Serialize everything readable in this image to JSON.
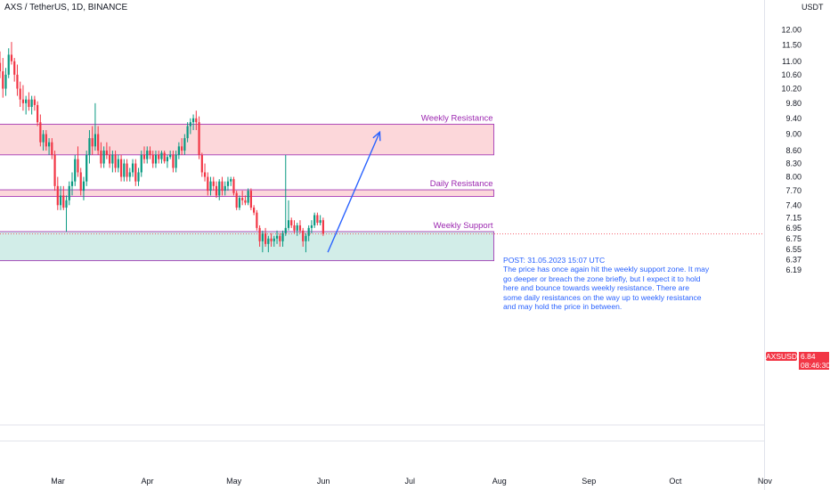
{
  "header": {
    "title": "AXS / TetherUS, 1D, BINANCE",
    "currency": "USDT"
  },
  "price_badge": {
    "symbol": "AXSUSDT",
    "price": "6.84",
    "countdown": "08:46:30"
  },
  "note": {
    "lines": [
      "POST: 31.05.2023 15:07 UTC",
      "The price has once again hit the weekly support zone. It may go deeper or breach the zone briefly, but I expect it to hold here and bounce towards weekly resistance. There are some daily resistances on the way up to weekly resistance and may hold the price in between."
    ]
  },
  "chart_data": {
    "type": "candlestick",
    "title": "AXS / TetherUS, 1D, BINANCE",
    "y_axis": {
      "scale": "log",
      "ticks": [
        "12.00",
        "11.50",
        "11.00",
        "10.60",
        "10.20",
        "9.80",
        "9.40",
        "9.00",
        "8.60",
        "8.30",
        "8.00",
        "7.70",
        "7.40",
        "7.15",
        "6.95",
        "6.75",
        "6.55",
        "6.37",
        "6.19"
      ],
      "range": [
        6.1,
        12.4
      ]
    },
    "x_axis": {
      "ticks": [
        "Mar",
        "Apr",
        "May",
        "Jun",
        "Jul",
        "Aug",
        "Sep",
        "Oct",
        "Nov"
      ],
      "range": [
        "2023-02-08",
        "2023-11-20"
      ]
    },
    "zones": [
      {
        "label": "Weekly Resistance",
        "low": 8.5,
        "high": 9.25,
        "end": "2023-07-31",
        "color": "#f23645"
      },
      {
        "label": "Daily Resistance",
        "low": 7.58,
        "high": 7.72,
        "end": "2023-07-31",
        "color": "#f23645"
      },
      {
        "label": "Weekly Support",
        "low": 6.35,
        "high": 6.88,
        "end": "2023-07-31",
        "color": "#089981"
      }
    ],
    "projection": {
      "from": [
        "2023-06-01",
        6.5
      ],
      "to": [
        "2023-06-19",
        9.05
      ],
      "color": "#2962ff"
    },
    "last_price": 6.84,
    "colors": {
      "up": "#089981",
      "down": "#f23645",
      "background": "#ffffff"
    },
    "candles": [
      {
        "d": "2023-02-08",
        "o": 10.95,
        "h": 11.3,
        "l": 10.5,
        "c": 10.7
      },
      {
        "d": "2023-02-09",
        "o": 10.7,
        "h": 11.1,
        "l": 9.95,
        "c": 10.2
      },
      {
        "d": "2023-02-10",
        "o": 10.2,
        "h": 10.8,
        "l": 10.0,
        "c": 10.6
      },
      {
        "d": "2023-02-11",
        "o": 10.6,
        "h": 11.4,
        "l": 10.5,
        "c": 11.2
      },
      {
        "d": "2023-02-12",
        "o": 11.2,
        "h": 11.6,
        "l": 10.9,
        "c": 11.0
      },
      {
        "d": "2023-02-13",
        "o": 11.0,
        "h": 11.1,
        "l": 10.4,
        "c": 10.6
      },
      {
        "d": "2023-02-14",
        "o": 10.6,
        "h": 10.9,
        "l": 10.0,
        "c": 10.2
      },
      {
        "d": "2023-02-15",
        "o": 10.2,
        "h": 10.4,
        "l": 9.7,
        "c": 9.9
      },
      {
        "d": "2023-02-16",
        "o": 9.9,
        "h": 10.3,
        "l": 9.6,
        "c": 9.8
      },
      {
        "d": "2023-02-17",
        "o": 9.8,
        "h": 10.0,
        "l": 9.5,
        "c": 9.9
      },
      {
        "d": "2023-02-18",
        "o": 9.9,
        "h": 10.1,
        "l": 9.6,
        "c": 9.7
      },
      {
        "d": "2023-02-19",
        "o": 9.7,
        "h": 10.0,
        "l": 9.5,
        "c": 9.9
      },
      {
        "d": "2023-02-20",
        "o": 9.9,
        "h": 10.0,
        "l": 9.6,
        "c": 9.75
      },
      {
        "d": "2023-02-21",
        "o": 9.75,
        "h": 9.85,
        "l": 9.2,
        "c": 9.3
      },
      {
        "d": "2023-02-22",
        "o": 9.3,
        "h": 9.5,
        "l": 8.7,
        "c": 8.8
      },
      {
        "d": "2023-02-23",
        "o": 8.8,
        "h": 9.1,
        "l": 8.6,
        "c": 9.0
      },
      {
        "d": "2023-02-24",
        "o": 9.0,
        "h": 9.1,
        "l": 8.6,
        "c": 8.7
      },
      {
        "d": "2023-02-25",
        "o": 8.7,
        "h": 8.9,
        "l": 8.5,
        "c": 8.8
      },
      {
        "d": "2023-02-26",
        "o": 8.8,
        "h": 8.9,
        "l": 8.4,
        "c": 8.5
      },
      {
        "d": "2023-02-27",
        "o": 8.5,
        "h": 8.6,
        "l": 7.7,
        "c": 7.8
      },
      {
        "d": "2023-02-28",
        "o": 7.8,
        "h": 8.0,
        "l": 7.3,
        "c": 7.4
      },
      {
        "d": "2023-03-01",
        "o": 7.4,
        "h": 7.8,
        "l": 7.3,
        "c": 7.6
      },
      {
        "d": "2023-03-02",
        "o": 7.6,
        "h": 7.8,
        "l": 7.3,
        "c": 7.35
      },
      {
        "d": "2023-03-03",
        "o": 7.35,
        "h": 7.6,
        "l": 6.88,
        "c": 7.5
      },
      {
        "d": "2023-03-04",
        "o": 7.5,
        "h": 7.9,
        "l": 7.4,
        "c": 7.8
      },
      {
        "d": "2023-03-05",
        "o": 7.8,
        "h": 8.1,
        "l": 7.6,
        "c": 7.9
      },
      {
        "d": "2023-03-06",
        "o": 7.9,
        "h": 8.5,
        "l": 7.8,
        "c": 8.4
      },
      {
        "d": "2023-03-07",
        "o": 8.4,
        "h": 8.7,
        "l": 8.0,
        "c": 8.1
      },
      {
        "d": "2023-03-08",
        "o": 8.1,
        "h": 8.2,
        "l": 7.6,
        "c": 7.7
      },
      {
        "d": "2023-03-09",
        "o": 7.7,
        "h": 8.0,
        "l": 7.5,
        "c": 7.9
      },
      {
        "d": "2023-03-10",
        "o": 7.9,
        "h": 8.6,
        "l": 7.8,
        "c": 8.5
      },
      {
        "d": "2023-03-11",
        "o": 8.5,
        "h": 9.1,
        "l": 8.3,
        "c": 8.9
      },
      {
        "d": "2023-03-12",
        "o": 8.9,
        "h": 9.2,
        "l": 8.5,
        "c": 8.7
      },
      {
        "d": "2023-03-13",
        "o": 8.7,
        "h": 9.8,
        "l": 8.6,
        "c": 9.0
      },
      {
        "d": "2023-03-14",
        "o": 9.0,
        "h": 9.2,
        "l": 8.5,
        "c": 8.6
      },
      {
        "d": "2023-03-15",
        "o": 8.6,
        "h": 8.8,
        "l": 8.2,
        "c": 8.3
      },
      {
        "d": "2023-03-16",
        "o": 8.3,
        "h": 8.7,
        "l": 8.2,
        "c": 8.6
      },
      {
        "d": "2023-03-17",
        "o": 8.6,
        "h": 8.8,
        "l": 8.4,
        "c": 8.5
      },
      {
        "d": "2023-03-18",
        "o": 8.5,
        "h": 8.7,
        "l": 8.2,
        "c": 8.3
      },
      {
        "d": "2023-03-19",
        "o": 8.3,
        "h": 8.6,
        "l": 8.1,
        "c": 8.5
      },
      {
        "d": "2023-03-20",
        "o": 8.5,
        "h": 8.6,
        "l": 8.1,
        "c": 8.2
      },
      {
        "d": "2023-03-21",
        "o": 8.2,
        "h": 8.5,
        "l": 8.1,
        "c": 8.4
      },
      {
        "d": "2023-03-22",
        "o": 8.4,
        "h": 8.5,
        "l": 7.9,
        "c": 8.0
      },
      {
        "d": "2023-03-23",
        "o": 8.0,
        "h": 8.4,
        "l": 7.9,
        "c": 8.3
      },
      {
        "d": "2023-03-24",
        "o": 8.3,
        "h": 8.4,
        "l": 7.9,
        "c": 8.0
      },
      {
        "d": "2023-03-25",
        "o": 8.0,
        "h": 8.2,
        "l": 7.9,
        "c": 8.1
      },
      {
        "d": "2023-03-26",
        "o": 8.1,
        "h": 8.4,
        "l": 8.0,
        "c": 8.3
      },
      {
        "d": "2023-03-27",
        "o": 8.3,
        "h": 8.4,
        "l": 7.8,
        "c": 7.9
      },
      {
        "d": "2023-03-28",
        "o": 7.9,
        "h": 8.2,
        "l": 7.8,
        "c": 8.1
      },
      {
        "d": "2023-03-29",
        "o": 8.1,
        "h": 8.6,
        "l": 8.0,
        "c": 8.5
      },
      {
        "d": "2023-03-30",
        "o": 8.5,
        "h": 8.7,
        "l": 8.3,
        "c": 8.4
      },
      {
        "d": "2023-03-31",
        "o": 8.4,
        "h": 8.7,
        "l": 8.3,
        "c": 8.6
      },
      {
        "d": "2023-04-01",
        "o": 8.6,
        "h": 8.7,
        "l": 8.4,
        "c": 8.5
      },
      {
        "d": "2023-04-02",
        "o": 8.5,
        "h": 8.6,
        "l": 8.2,
        "c": 8.3
      },
      {
        "d": "2023-04-03",
        "o": 8.3,
        "h": 8.6,
        "l": 8.2,
        "c": 8.5
      },
      {
        "d": "2023-04-04",
        "o": 8.5,
        "h": 8.6,
        "l": 8.3,
        "c": 8.4
      },
      {
        "d": "2023-04-05",
        "o": 8.4,
        "h": 8.6,
        "l": 8.3,
        "c": 8.55
      },
      {
        "d": "2023-04-06",
        "o": 8.55,
        "h": 8.6,
        "l": 8.3,
        "c": 8.35
      },
      {
        "d": "2023-04-07",
        "o": 8.35,
        "h": 8.5,
        "l": 8.2,
        "c": 8.45
      },
      {
        "d": "2023-04-08",
        "o": 8.45,
        "h": 8.6,
        "l": 8.4,
        "c": 8.5
      },
      {
        "d": "2023-04-09",
        "o": 8.5,
        "h": 8.6,
        "l": 8.1,
        "c": 8.2
      },
      {
        "d": "2023-04-10",
        "o": 8.2,
        "h": 8.6,
        "l": 8.1,
        "c": 8.5
      },
      {
        "d": "2023-04-11",
        "o": 8.5,
        "h": 8.8,
        "l": 8.4,
        "c": 8.7
      },
      {
        "d": "2023-04-12",
        "o": 8.7,
        "h": 8.9,
        "l": 8.5,
        "c": 8.6
      },
      {
        "d": "2023-04-13",
        "o": 8.6,
        "h": 9.0,
        "l": 8.5,
        "c": 8.9
      },
      {
        "d": "2023-04-14",
        "o": 8.9,
        "h": 9.3,
        "l": 8.8,
        "c": 9.2
      },
      {
        "d": "2023-04-15",
        "o": 9.2,
        "h": 9.4,
        "l": 9.0,
        "c": 9.3
      },
      {
        "d": "2023-04-16",
        "o": 9.3,
        "h": 9.5,
        "l": 9.1,
        "c": 9.4
      },
      {
        "d": "2023-04-17",
        "o": 9.4,
        "h": 9.6,
        "l": 9.1,
        "c": 9.3
      },
      {
        "d": "2023-04-18",
        "o": 9.3,
        "h": 9.45,
        "l": 8.4,
        "c": 8.5
      },
      {
        "d": "2023-04-19",
        "o": 8.5,
        "h": 8.55,
        "l": 8.0,
        "c": 8.1
      },
      {
        "d": "2023-04-20",
        "o": 8.1,
        "h": 8.3,
        "l": 7.9,
        "c": 8.0
      },
      {
        "d": "2023-04-21",
        "o": 8.0,
        "h": 8.1,
        "l": 7.6,
        "c": 7.7
      },
      {
        "d": "2023-04-22",
        "o": 7.7,
        "h": 8.0,
        "l": 7.6,
        "c": 7.9
      },
      {
        "d": "2023-04-23",
        "o": 7.9,
        "h": 8.0,
        "l": 7.7,
        "c": 7.8
      },
      {
        "d": "2023-04-24",
        "o": 7.8,
        "h": 7.9,
        "l": 7.55,
        "c": 7.6
      },
      {
        "d": "2023-04-25",
        "o": 7.6,
        "h": 7.95,
        "l": 7.5,
        "c": 7.9
      },
      {
        "d": "2023-04-26",
        "o": 7.9,
        "h": 8.0,
        "l": 7.6,
        "c": 7.7
      },
      {
        "d": "2023-04-27",
        "o": 7.7,
        "h": 7.9,
        "l": 7.6,
        "c": 7.8
      },
      {
        "d": "2023-04-28",
        "o": 7.8,
        "h": 8.0,
        "l": 7.7,
        "c": 7.9
      },
      {
        "d": "2023-04-29",
        "o": 7.9,
        "h": 8.0,
        "l": 7.8,
        "c": 7.95
      },
      {
        "d": "2023-04-30",
        "o": 7.95,
        "h": 8.0,
        "l": 7.6,
        "c": 7.65
      },
      {
        "d": "2023-05-01",
        "o": 7.65,
        "h": 7.7,
        "l": 7.3,
        "c": 7.35
      },
      {
        "d": "2023-05-02",
        "o": 7.35,
        "h": 7.6,
        "l": 7.3,
        "c": 7.55
      },
      {
        "d": "2023-05-03",
        "o": 7.55,
        "h": 7.7,
        "l": 7.4,
        "c": 7.5
      },
      {
        "d": "2023-05-04",
        "o": 7.5,
        "h": 7.6,
        "l": 7.4,
        "c": 7.45
      },
      {
        "d": "2023-05-05",
        "o": 7.45,
        "h": 7.75,
        "l": 7.4,
        "c": 7.7
      },
      {
        "d": "2023-05-06",
        "o": 7.7,
        "h": 7.75,
        "l": 7.3,
        "c": 7.35
      },
      {
        "d": "2023-05-07",
        "o": 7.35,
        "h": 7.4,
        "l": 7.2,
        "c": 7.25
      },
      {
        "d": "2023-05-08",
        "o": 7.25,
        "h": 7.3,
        "l": 6.9,
        "c": 6.95
      },
      {
        "d": "2023-05-09",
        "o": 6.95,
        "h": 7.0,
        "l": 6.6,
        "c": 6.7
      },
      {
        "d": "2023-05-10",
        "o": 6.7,
        "h": 6.9,
        "l": 6.5,
        "c": 6.85
      },
      {
        "d": "2023-05-11",
        "o": 6.85,
        "h": 6.95,
        "l": 6.6,
        "c": 6.65
      },
      {
        "d": "2023-05-12",
        "o": 6.65,
        "h": 6.8,
        "l": 6.5,
        "c": 6.75
      },
      {
        "d": "2023-05-13",
        "o": 6.75,
        "h": 6.85,
        "l": 6.6,
        "c": 6.7
      },
      {
        "d": "2023-05-14",
        "o": 6.7,
        "h": 6.8,
        "l": 6.6,
        "c": 6.75
      },
      {
        "d": "2023-05-15",
        "o": 6.75,
        "h": 6.9,
        "l": 6.65,
        "c": 6.8
      },
      {
        "d": "2023-05-16",
        "o": 6.8,
        "h": 6.85,
        "l": 6.6,
        "c": 6.7
      },
      {
        "d": "2023-05-17",
        "o": 6.7,
        "h": 6.9,
        "l": 6.6,
        "c": 6.85
      },
      {
        "d": "2023-05-18",
        "o": 6.85,
        "h": 8.5,
        "l": 6.8,
        "c": 6.95
      },
      {
        "d": "2023-05-19",
        "o": 6.95,
        "h": 7.5,
        "l": 6.9,
        "c": 7.1
      },
      {
        "d": "2023-05-20",
        "o": 7.1,
        "h": 7.15,
        "l": 6.95,
        "c": 7.0
      },
      {
        "d": "2023-05-21",
        "o": 7.0,
        "h": 7.1,
        "l": 6.85,
        "c": 6.9
      },
      {
        "d": "2023-05-22",
        "o": 6.9,
        "h": 7.05,
        "l": 6.8,
        "c": 7.0
      },
      {
        "d": "2023-05-23",
        "o": 7.0,
        "h": 7.1,
        "l": 6.85,
        "c": 6.9
      },
      {
        "d": "2023-05-24",
        "o": 6.9,
        "h": 6.95,
        "l": 6.6,
        "c": 6.7
      },
      {
        "d": "2023-05-25",
        "o": 6.7,
        "h": 6.85,
        "l": 6.5,
        "c": 6.8
      },
      {
        "d": "2023-05-26",
        "o": 6.8,
        "h": 7.0,
        "l": 6.7,
        "c": 6.95
      },
      {
        "d": "2023-05-27",
        "o": 6.95,
        "h": 7.1,
        "l": 6.85,
        "c": 7.0
      },
      {
        "d": "2023-05-28",
        "o": 7.0,
        "h": 7.25,
        "l": 6.95,
        "c": 7.2
      },
      {
        "d": "2023-05-29",
        "o": 7.2,
        "h": 7.25,
        "l": 7.0,
        "c": 7.05
      },
      {
        "d": "2023-05-30",
        "o": 7.05,
        "h": 7.2,
        "l": 7.0,
        "c": 7.1
      },
      {
        "d": "2023-05-31",
        "o": 7.1,
        "h": 7.15,
        "l": 6.8,
        "c": 6.84
      }
    ]
  }
}
